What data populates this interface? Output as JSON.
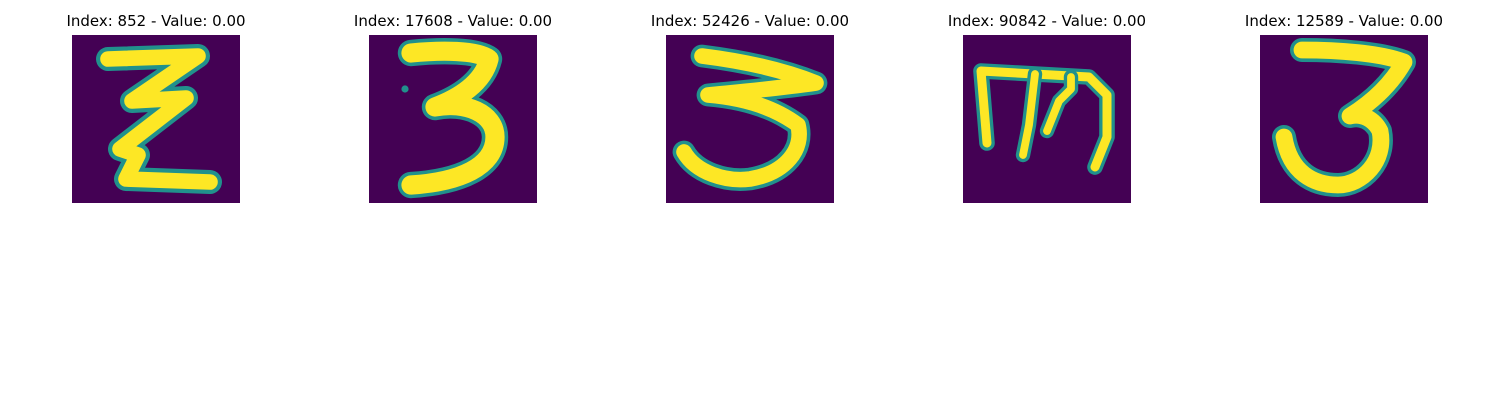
{
  "figure": {
    "background": "#ffffff",
    "image_background": "#440154",
    "stroke_color": "#fde725",
    "edge_color": "#21918c",
    "panels": [
      {
        "title": "Index: 852 - Value: 0.00",
        "glyph": "handwritten-z-icon"
      },
      {
        "title": "Index: 17608 - Value: 0.00",
        "glyph": "handwritten-3-icon"
      },
      {
        "title": "Index: 52426 - Value: 0.00",
        "glyph": "handwritten-3-icon"
      },
      {
        "title": "Index: 90842 - Value: 0.00",
        "glyph": "handwritten-m-icon"
      },
      {
        "title": "Index: 12589 - Value: 0.00",
        "glyph": "handwritten-3-icon"
      }
    ]
  }
}
